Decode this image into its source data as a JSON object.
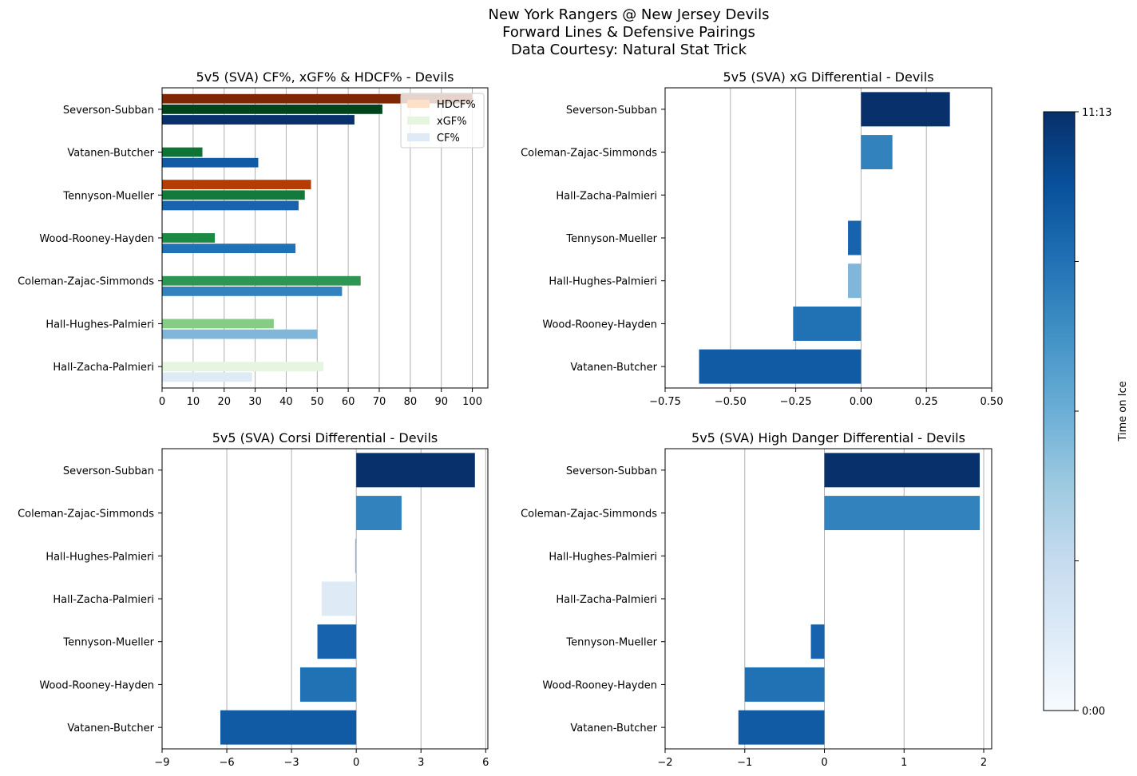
{
  "figure": {
    "title_lines": [
      "New York Rangers @ New Jersey Devils",
      "Forward Lines & Defensive Pairings",
      "Data Courtesy: Natural Stat Trick"
    ]
  },
  "colorbar": {
    "label": "Time on Ice",
    "tick_top": "11:13",
    "tick_bottom": "0:00",
    "colormap": [
      "#f7fbff",
      "#deebf7",
      "#c6dbef",
      "#9ecae1",
      "#6baed6",
      "#4292c6",
      "#2171b5",
      "#08519c",
      "#08306b"
    ]
  },
  "chart_data": [
    {
      "id": "pct",
      "type": "bar",
      "orientation": "horizontal",
      "title": "5v5 (SVA) CF%, xGF% & HDCF% - Devils",
      "categories": [
        "Hall-Zacha-Palmieri",
        "Hall-Hughes-Palmieri",
        "Coleman-Zajac-Simmonds",
        "Wood-Rooney-Hayden",
        "Tennyson-Mueller",
        "Vatanen-Butcher",
        "Severson-Subban"
      ],
      "xlim": [
        0,
        105
      ],
      "xticks": [
        0,
        10,
        20,
        30,
        40,
        50,
        60,
        70,
        80,
        90,
        100
      ],
      "grid": "x",
      "legend": {
        "position": "top-right",
        "entries": [
          "HDCF%",
          "xGF%",
          "CF%"
        ],
        "colors": [
          "#fde0c5",
          "#e5f5e0",
          "#deebf7"
        ]
      },
      "series": [
        {
          "name": "CF%",
          "values": [
            29,
            50,
            58,
            43,
            44,
            31,
            62
          ],
          "colors": [
            "#deebf7",
            "#7fb6d9",
            "#3182bd",
            "#2171b5",
            "#1763ad",
            "#105ba4",
            "#08306b"
          ]
        },
        {
          "name": "xGF%",
          "values": [
            52,
            36,
            64,
            17,
            46,
            13,
            71
          ],
          "colors": [
            "#e5f5e0",
            "#86cc85",
            "#2e9652",
            "#1b8a45",
            "#127a3b",
            "#0e7436",
            "#00441b"
          ]
        },
        {
          "name": "HDCF%",
          "values": [
            0,
            0,
            0,
            0,
            48,
            0,
            100
          ],
          "colors": [
            "#fee6ce",
            "#fdae6b",
            "#f16913",
            "#d94801",
            "#b43c05",
            "#a63603",
            "#7f2704"
          ]
        }
      ]
    },
    {
      "id": "xg",
      "type": "bar",
      "orientation": "horizontal",
      "title": "5v5 (SVA) xG Differential - Devils",
      "categories": [
        "Vatanen-Butcher",
        "Wood-Rooney-Hayden",
        "Hall-Hughes-Palmieri",
        "Tennyson-Mueller",
        "Hall-Zacha-Palmieri",
        "Coleman-Zajac-Simmonds",
        "Severson-Subban"
      ],
      "values": [
        -0.62,
        -0.26,
        -0.05,
        -0.05,
        0,
        0.12,
        0.34
      ],
      "colors": [
        "#105ba4",
        "#2171b5",
        "#7fb6d9",
        "#1763ad",
        "#deebf7",
        "#3182bd",
        "#08306b"
      ],
      "xlim": [
        -0.75,
        0.5
      ],
      "xticks": [
        -0.75,
        -0.5,
        -0.25,
        0,
        0.25,
        0.5
      ],
      "xtick_labels": [
        "−0.75",
        "−0.50",
        "−0.25",
        "0.00",
        "0.25",
        "0.50"
      ],
      "grid": "x"
    },
    {
      "id": "corsi",
      "type": "bar",
      "orientation": "horizontal",
      "title": "5v5 (SVA) Corsi Differential - Devils",
      "categories": [
        "Vatanen-Butcher",
        "Wood-Rooney-Hayden",
        "Tennyson-Mueller",
        "Hall-Zacha-Palmieri",
        "Hall-Hughes-Palmieri",
        "Coleman-Zajac-Simmonds",
        "Severson-Subban"
      ],
      "values": [
        -6.3,
        -2.6,
        -1.8,
        -1.6,
        -0.05,
        2.1,
        5.5
      ],
      "colors": [
        "#105ba4",
        "#2171b5",
        "#1763ad",
        "#deebf7",
        "#7fb6d9",
        "#3182bd",
        "#08306b"
      ],
      "xlim": [
        -9,
        6.1
      ],
      "xticks": [
        -9,
        -6,
        -3,
        0,
        3,
        6
      ],
      "xtick_labels": [
        "−9",
        "−6",
        "−3",
        "0",
        "3",
        "6"
      ],
      "grid": "x"
    },
    {
      "id": "hd",
      "type": "bar",
      "orientation": "horizontal",
      "title": "5v5 (SVA) High Danger Differential - Devils",
      "categories": [
        "Vatanen-Butcher",
        "Wood-Rooney-Hayden",
        "Tennyson-Mueller",
        "Hall-Zacha-Palmieri",
        "Hall-Hughes-Palmieri",
        "Coleman-Zajac-Simmonds",
        "Severson-Subban"
      ],
      "values": [
        -1.08,
        -1.0,
        -0.17,
        0,
        0,
        1.95,
        1.95
      ],
      "colors": [
        "#105ba4",
        "#2171b5",
        "#1763ad",
        "#deebf7",
        "#7fb6d9",
        "#3182bd",
        "#08306b"
      ],
      "xlim": [
        -2,
        2.1
      ],
      "xticks": [
        -2,
        -1,
        0,
        1,
        2
      ],
      "xtick_labels": [
        "−2",
        "−1",
        "0",
        "1",
        "2"
      ],
      "grid": "x"
    }
  ]
}
